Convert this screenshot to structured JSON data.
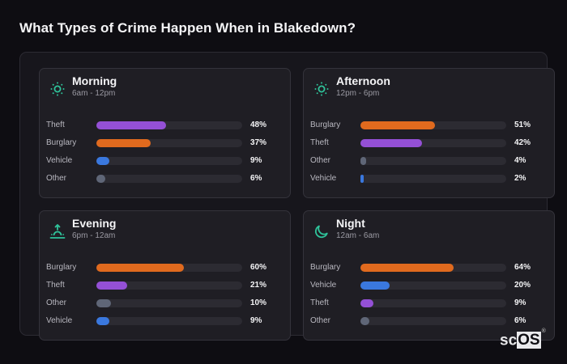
{
  "title": "What Types of Crime Happen When in Blakedown?",
  "colors": {
    "Theft": "#9450d6",
    "Burglary": "#e06a1e",
    "Vehicle": "#3a78de",
    "Other": "#5f6677",
    "accent": "#2fc39a"
  },
  "logo": {
    "prefix": "sc",
    "highlight": "OS",
    "mark": "®"
  },
  "cards": [
    {
      "title": "Morning",
      "subtitle": "6am - 12pm",
      "icon": "sun-icon",
      "rows": [
        {
          "label": "Theft",
          "value": 48,
          "pct": "48%"
        },
        {
          "label": "Burglary",
          "value": 37,
          "pct": "37%"
        },
        {
          "label": "Vehicle",
          "value": 9,
          "pct": "9%"
        },
        {
          "label": "Other",
          "value": 6,
          "pct": "6%"
        }
      ]
    },
    {
      "title": "Afternoon",
      "subtitle": "12pm - 6pm",
      "icon": "sun-icon",
      "rows": [
        {
          "label": "Burglary",
          "value": 51,
          "pct": "51%"
        },
        {
          "label": "Theft",
          "value": 42,
          "pct": "42%"
        },
        {
          "label": "Other",
          "value": 4,
          "pct": "4%"
        },
        {
          "label": "Vehicle",
          "value": 2,
          "pct": "2%"
        }
      ]
    },
    {
      "title": "Evening",
      "subtitle": "6pm - 12am",
      "icon": "sunset-icon",
      "rows": [
        {
          "label": "Burglary",
          "value": 60,
          "pct": "60%"
        },
        {
          "label": "Theft",
          "value": 21,
          "pct": "21%"
        },
        {
          "label": "Other",
          "value": 10,
          "pct": "10%"
        },
        {
          "label": "Vehicle",
          "value": 9,
          "pct": "9%"
        }
      ]
    },
    {
      "title": "Night",
      "subtitle": "12am - 6am",
      "icon": "moon-icon",
      "rows": [
        {
          "label": "Burglary",
          "value": 64,
          "pct": "64%"
        },
        {
          "label": "Vehicle",
          "value": 20,
          "pct": "20%"
        },
        {
          "label": "Theft",
          "value": 9,
          "pct": "9%"
        },
        {
          "label": "Other",
          "value": 6,
          "pct": "6%"
        }
      ]
    }
  ],
  "chart_data": {
    "type": "bar",
    "title": "What Types of Crime Happen When in Blakedown?",
    "orientation": "horizontal",
    "unit": "%",
    "xlim": [
      0,
      100
    ],
    "panels": [
      {
        "name": "Morning",
        "range": "6am - 12pm",
        "categories": [
          "Theft",
          "Burglary",
          "Vehicle",
          "Other"
        ],
        "values": [
          48,
          37,
          9,
          6
        ]
      },
      {
        "name": "Afternoon",
        "range": "12pm - 6pm",
        "categories": [
          "Burglary",
          "Theft",
          "Other",
          "Vehicle"
        ],
        "values": [
          51,
          42,
          4,
          2
        ]
      },
      {
        "name": "Evening",
        "range": "6pm - 12am",
        "categories": [
          "Burglary",
          "Theft",
          "Other",
          "Vehicle"
        ],
        "values": [
          60,
          21,
          10,
          9
        ]
      },
      {
        "name": "Night",
        "range": "12am - 6am",
        "categories": [
          "Burglary",
          "Vehicle",
          "Theft",
          "Other"
        ],
        "values": [
          64,
          20,
          9,
          6
        ]
      }
    ]
  }
}
